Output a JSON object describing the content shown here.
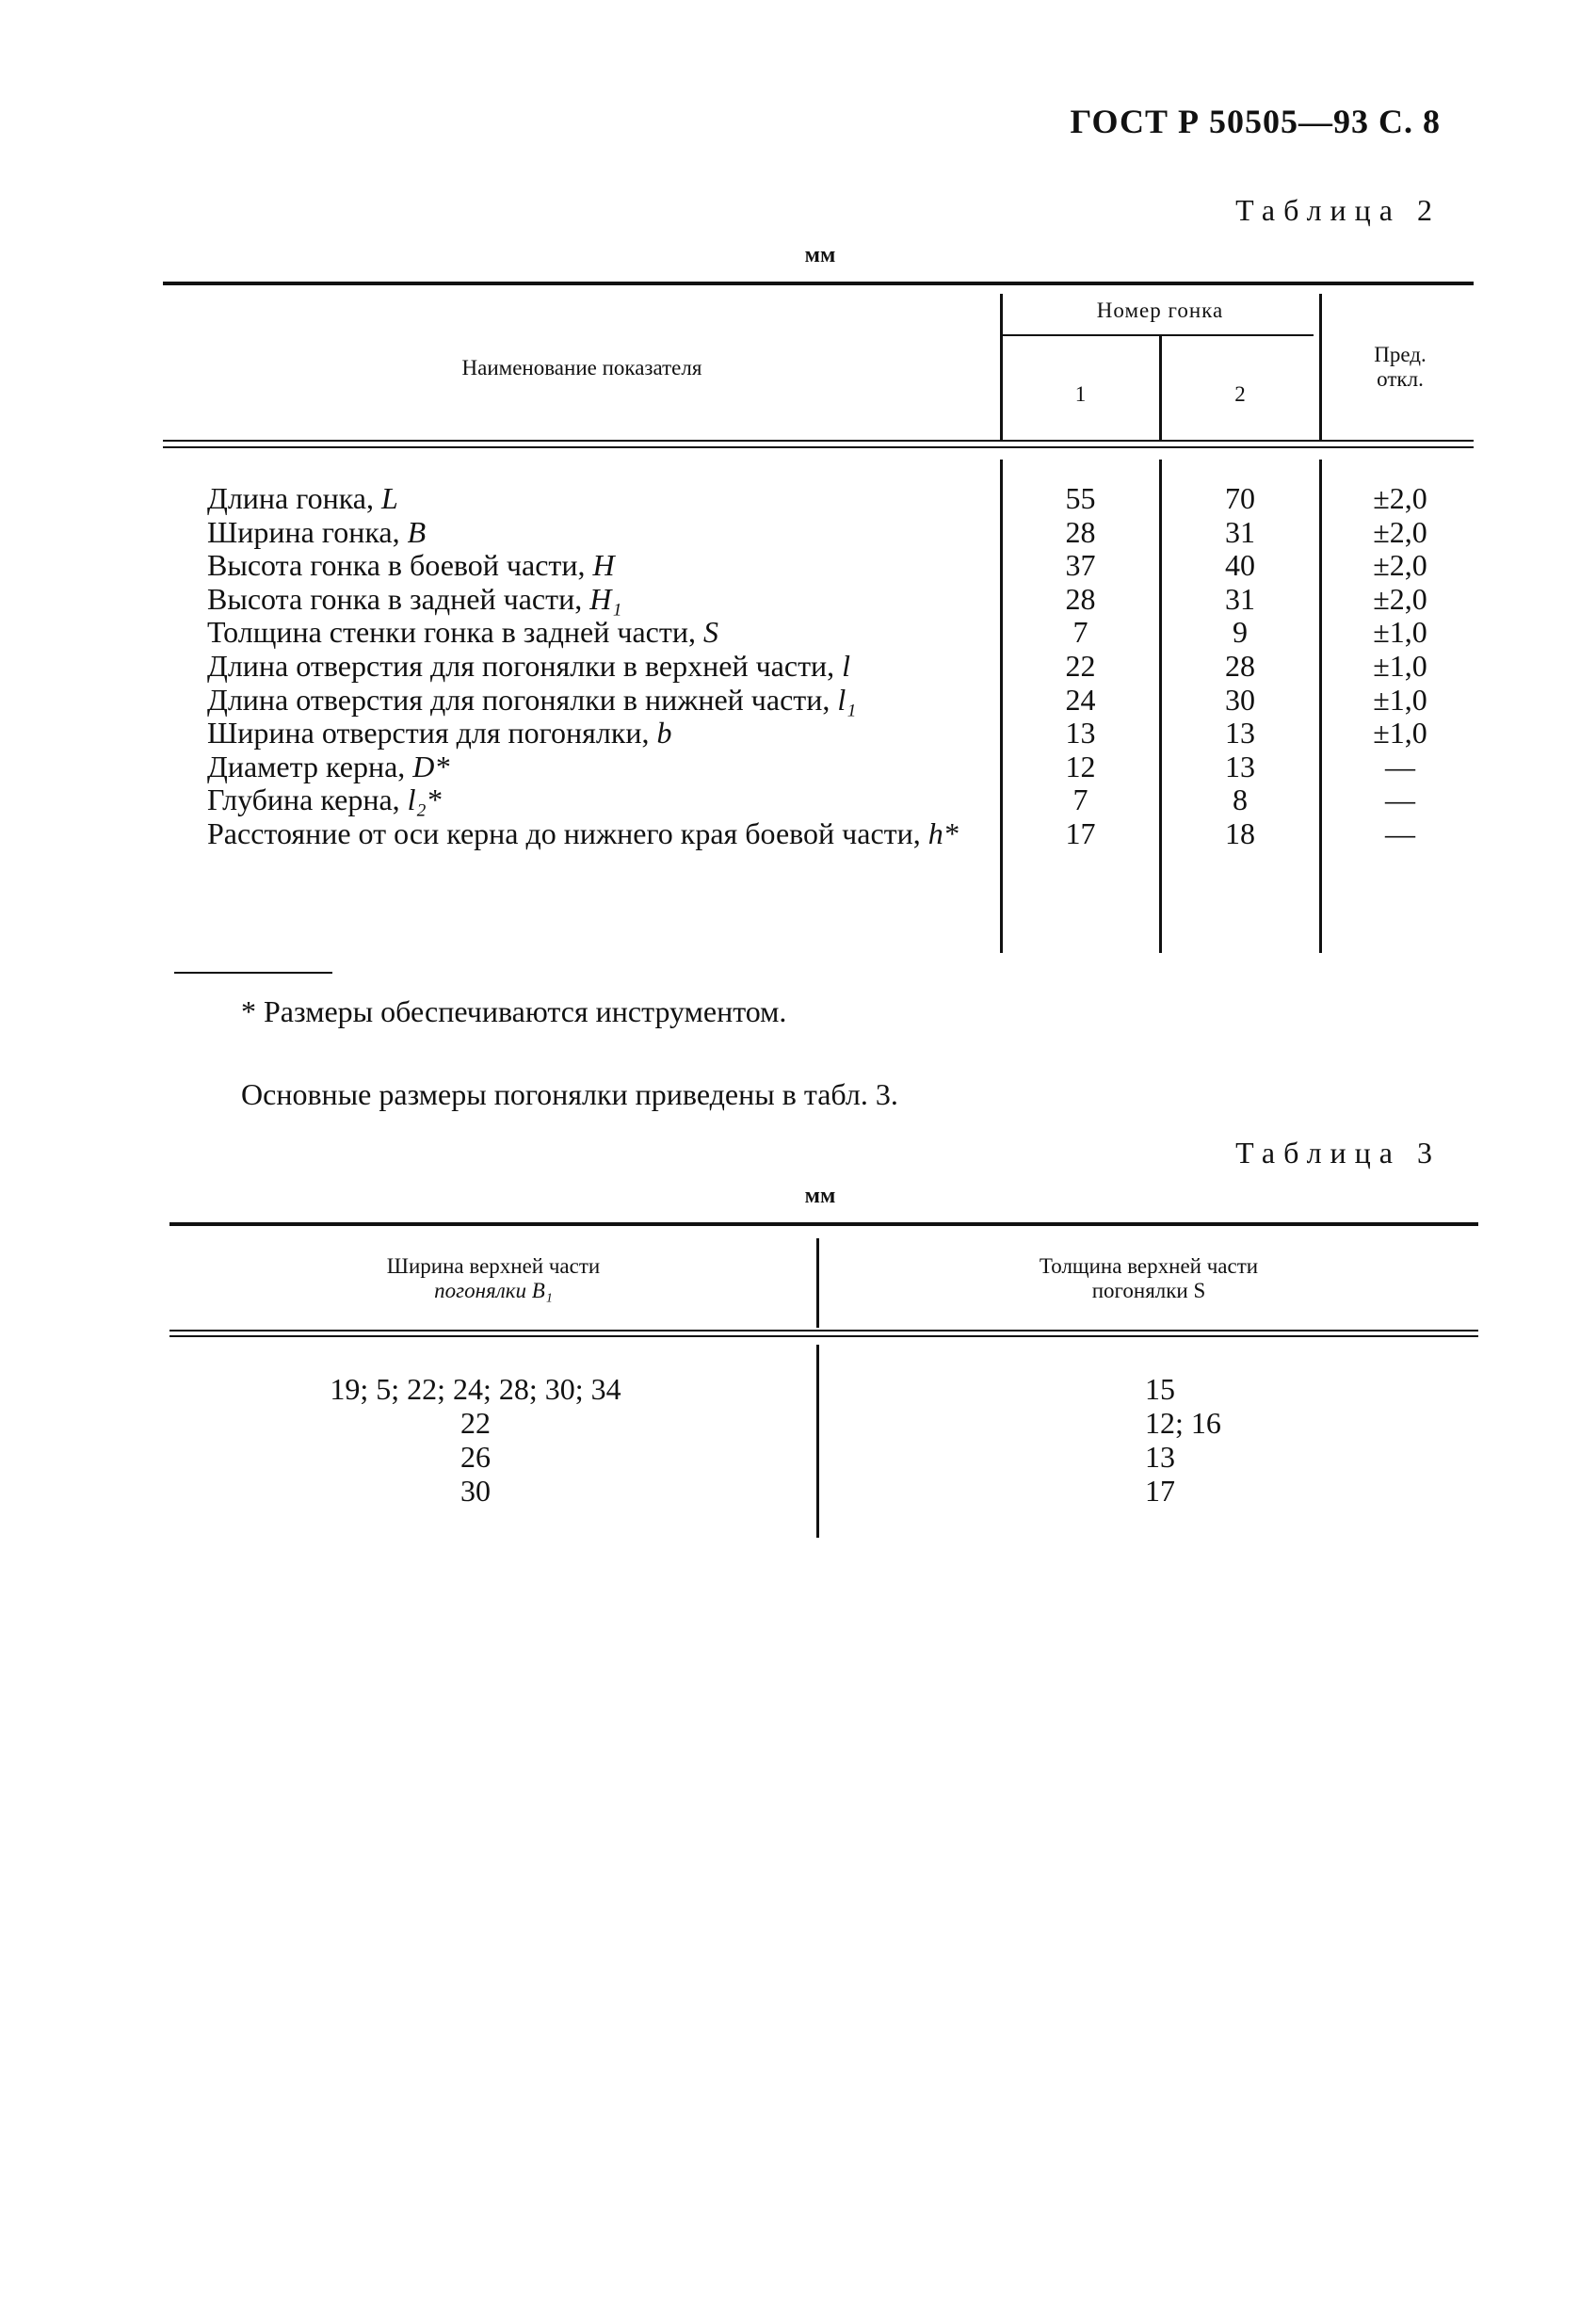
{
  "page_header": "ГОСТ Р 50505—93 С. 8",
  "table2": {
    "caption": "Таблица 2",
    "unit": "мм",
    "headers": {
      "name": "Наименование показателя",
      "group": "Номер гонка",
      "col1": "1",
      "col2": "2",
      "tol_line1": "Пред.",
      "tol_line2": "откл."
    },
    "rows": [
      {
        "label": "Длина гонка, ",
        "sym": "L",
        "v1": "55",
        "v2": "70",
        "tol": "±2,0"
      },
      {
        "label": "Ширина гонка, ",
        "sym": "B",
        "v1": "28",
        "v2": "31",
        "tol": "±2,0"
      },
      {
        "label": "Высота гонка в боевой части, ",
        "sym": "H",
        "v1": "37",
        "v2": "40",
        "tol": "±2,0"
      },
      {
        "label": "Высота гонка в задней части, ",
        "sym": "H₁",
        "v1": "28",
        "v2": "31",
        "tol": "±2,0"
      },
      {
        "label": "Толщина стенки гонка в задней части, ",
        "sym": "S",
        "v1": "7",
        "v2": "9",
        "tol": "±1,0"
      },
      {
        "label": "Длина отверстия для погонялки в верхней части, ",
        "sym": "l",
        "v1": "22",
        "v2": "28",
        "tol": "±1,0"
      },
      {
        "label": "Длина отверстия для погонялки в нижней части, ",
        "sym": "l₁",
        "v1": "24",
        "v2": "30",
        "tol": "±1,0"
      },
      {
        "label": "Ширина отверстия для погонялки, ",
        "sym": "b",
        "v1": "13",
        "v2": "13",
        "tol": "±1,0"
      },
      {
        "label": "Диаметр керна, ",
        "sym": "D*",
        "v1": "12",
        "v2": "13",
        "tol": "—"
      },
      {
        "label": "Глубина керна, ",
        "sym": "l₂*",
        "v1": "7",
        "v2": "8",
        "tol": "—"
      },
      {
        "label": "Расстояние от оси керна до нижнего края боевой части, ",
        "sym": "h*",
        "v1": "17",
        "v2": "18",
        "tol": "—"
      }
    ],
    "footnote": "* Размеры обеспечиваются инструментом."
  },
  "paragraph": "Основные размеры погонялки приведены в табл. 3.",
  "table3": {
    "caption": "Таблица 3",
    "unit": "мм",
    "headers": {
      "col1_line1": "Ширина верхней части",
      "col1_line2": "погонялки B₁",
      "col2_line1": "Толщина верхней части",
      "col2_line2": "погонялки S"
    },
    "rows": [
      {
        "b1": "19; 5; 22; 24; 28; 30; 34",
        "s": "15"
      },
      {
        "b1": "22",
        "s": "12; 16"
      },
      {
        "b1": "26",
        "s": "13"
      },
      {
        "b1": "30",
        "s": "17"
      }
    ]
  }
}
